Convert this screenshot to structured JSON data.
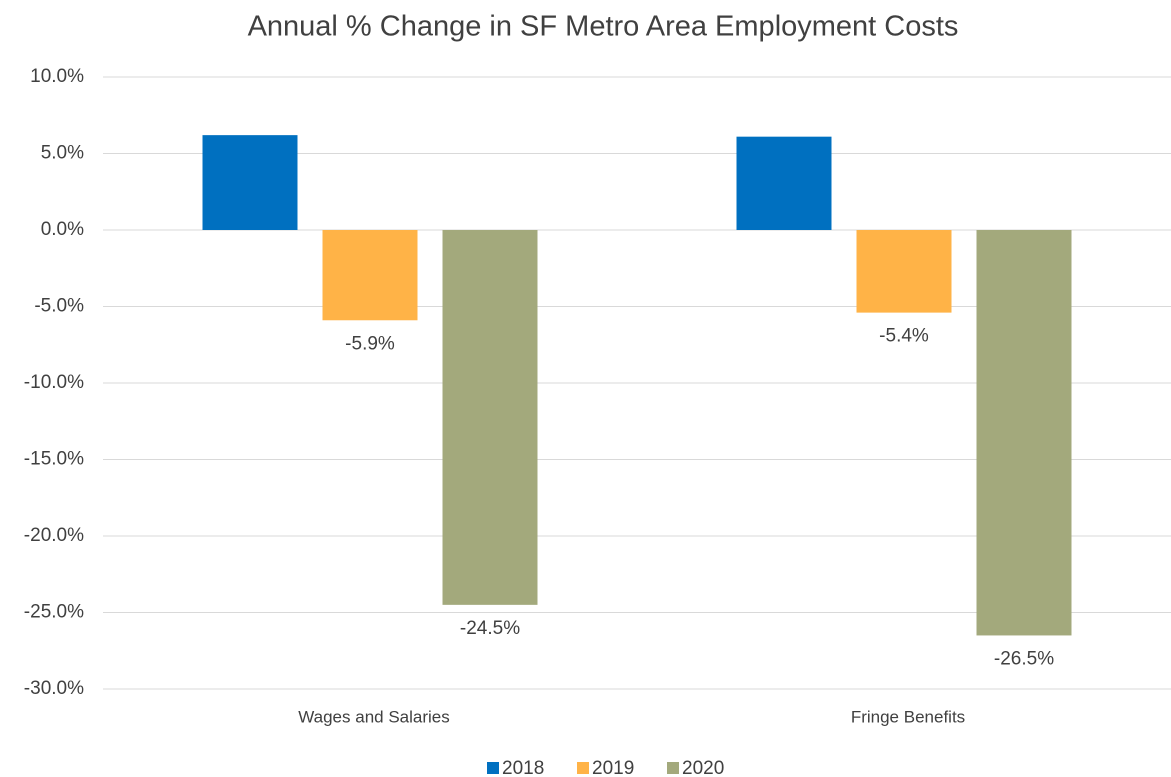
{
  "chart_data": {
    "type": "bar",
    "title": "Annual % Change in SF Metro Area Employment Costs",
    "categories": [
      "Wages and Salaries",
      "Fringe Benefits"
    ],
    "series": [
      {
        "name": "2018",
        "color": "#0070c0",
        "values": [
          6.2,
          6.1
        ]
      },
      {
        "name": "2019",
        "color": "#ffb347",
        "values": [
          -5.9,
          -5.4
        ],
        "value_labels": [
          "-5.9%",
          "-5.4%"
        ]
      },
      {
        "name": "2020",
        "color": "#a3a97c",
        "values": [
          -24.5,
          -26.5
        ],
        "value_labels": [
          "-24.5%",
          "-26.5%"
        ]
      }
    ],
    "ylim": [
      -30,
      10
    ],
    "yticks": [
      {
        "value": -30,
        "label": "-30.0%"
      },
      {
        "value": -25,
        "label": "-25.0%"
      },
      {
        "value": -20,
        "label": "-20.0%"
      },
      {
        "value": -15,
        "label": "-15.0%"
      },
      {
        "value": -10,
        "label": "-10.0%"
      },
      {
        "value": -5,
        "label": "-5.0%"
      },
      {
        "value": 0,
        "label": "0.0%"
      },
      {
        "value": 5,
        "label": "5.0%"
      },
      {
        "value": 10,
        "label": "10.0%"
      }
    ],
    "grid": true,
    "legend": "bottom"
  }
}
